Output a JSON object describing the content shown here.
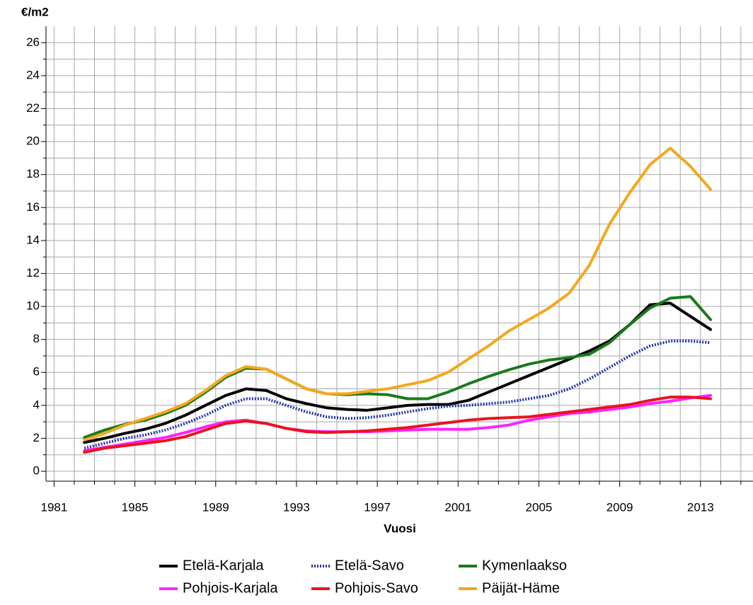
{
  "chart_data": {
    "type": "line",
    "ylabel": "€/m2",
    "xlabel": "Vuosi",
    "x": [
      1982.5,
      1983.5,
      1984.5,
      1985.5,
      1986.5,
      1987.5,
      1988.5,
      1989.5,
      1990.5,
      1991.5,
      1992.5,
      1993.5,
      1994.5,
      1995.5,
      1996.5,
      1997.5,
      1998.5,
      1999.5,
      2000.5,
      2001.5,
      2002.5,
      2003.5,
      2004.5,
      2005.5,
      2006.5,
      2007.5,
      2008.5,
      2009.5,
      2010.5,
      2011.5,
      2012.5,
      2013.5
    ],
    "series": [
      {
        "name": "Etelä-Karjala",
        "color": "#000000",
        "dashed": false,
        "values": [
          1.75,
          2.0,
          2.3,
          2.55,
          2.9,
          3.4,
          4.0,
          4.6,
          5.0,
          4.9,
          4.4,
          4.1,
          3.85,
          3.75,
          3.7,
          3.85,
          4.0,
          4.05,
          4.05,
          4.3,
          4.8,
          5.3,
          5.8,
          6.3,
          6.8,
          7.3,
          7.9,
          8.9,
          10.1,
          10.2,
          9.4,
          8.6
        ]
      },
      {
        "name": "Etelä-Savo",
        "color": "#2232a8",
        "dashed": true,
        "values": [
          1.4,
          1.7,
          2.0,
          2.2,
          2.5,
          2.9,
          3.4,
          4.0,
          4.4,
          4.4,
          4.0,
          3.6,
          3.3,
          3.2,
          3.25,
          3.4,
          3.6,
          3.8,
          3.95,
          4.0,
          4.1,
          4.2,
          4.4,
          4.6,
          5.0,
          5.6,
          6.3,
          7.0,
          7.6,
          7.9,
          7.9,
          7.8
        ]
      },
      {
        "name": "Kymenlaakso",
        "color": "#1a7a1a",
        "dashed": false,
        "values": [
          2.05,
          2.5,
          2.85,
          3.1,
          3.5,
          4.0,
          4.8,
          5.7,
          6.25,
          6.2,
          5.6,
          5.0,
          4.7,
          4.65,
          4.7,
          4.65,
          4.4,
          4.4,
          4.8,
          5.3,
          5.75,
          6.15,
          6.5,
          6.75,
          6.9,
          7.1,
          7.8,
          8.9,
          9.9,
          10.5,
          10.6,
          9.2
        ]
      },
      {
        "name": "Pohjois-Karjala",
        "color": "#ff22ff",
        "dashed": false,
        "values": [
          1.25,
          1.45,
          1.65,
          1.85,
          2.05,
          2.35,
          2.7,
          3.0,
          3.1,
          2.9,
          2.6,
          2.45,
          2.4,
          2.4,
          2.4,
          2.45,
          2.5,
          2.55,
          2.55,
          2.55,
          2.65,
          2.8,
          3.1,
          3.3,
          3.5,
          3.6,
          3.75,
          3.9,
          4.1,
          4.25,
          4.45,
          4.6
        ]
      },
      {
        "name": "Pohjois-Savo",
        "color": "#e8141e",
        "dashed": false,
        "values": [
          1.15,
          1.4,
          1.55,
          1.7,
          1.85,
          2.1,
          2.5,
          2.9,
          3.05,
          2.9,
          2.6,
          2.4,
          2.35,
          2.4,
          2.45,
          2.55,
          2.65,
          2.8,
          2.95,
          3.1,
          3.2,
          3.25,
          3.3,
          3.45,
          3.6,
          3.75,
          3.9,
          4.05,
          4.3,
          4.5,
          4.5,
          4.4
        ]
      },
      {
        "name": "Päijät-Häme",
        "color": "#f4a81d",
        "dashed": false,
        "values": [
          1.9,
          2.3,
          2.8,
          3.2,
          3.6,
          4.1,
          4.9,
          5.8,
          6.35,
          6.2,
          5.6,
          5.0,
          4.7,
          4.7,
          4.85,
          5.0,
          5.25,
          5.5,
          6.0,
          6.8,
          7.6,
          8.5,
          9.2,
          9.9,
          10.8,
          12.5,
          15.0,
          16.9,
          18.6,
          19.6,
          18.5,
          17.1
        ]
      }
    ],
    "xlim": [
      1980.6,
      2015.6
    ],
    "xticks": [
      1981,
      1985,
      1989,
      1993,
      1997,
      2001,
      2005,
      2009,
      2013
    ],
    "xminorticks": [
      1982,
      1983,
      1984,
      1986,
      1987,
      1988,
      1990,
      1991,
      1992,
      1994,
      1995,
      1996,
      1998,
      1999,
      2000,
      2002,
      2003,
      2004,
      2006,
      2007,
      2008,
      2010,
      2011,
      2012,
      2014,
      2015
    ],
    "ylim": [
      -0.6,
      27
    ],
    "yticks": [
      0,
      2,
      4,
      6,
      8,
      10,
      12,
      14,
      16,
      18,
      20,
      22,
      24,
      26
    ],
    "yminorticks": [
      1,
      3,
      5,
      7,
      9,
      11,
      13,
      15,
      17,
      19,
      21,
      23,
      25
    ],
    "grid": true,
    "legend": "bottom"
  }
}
